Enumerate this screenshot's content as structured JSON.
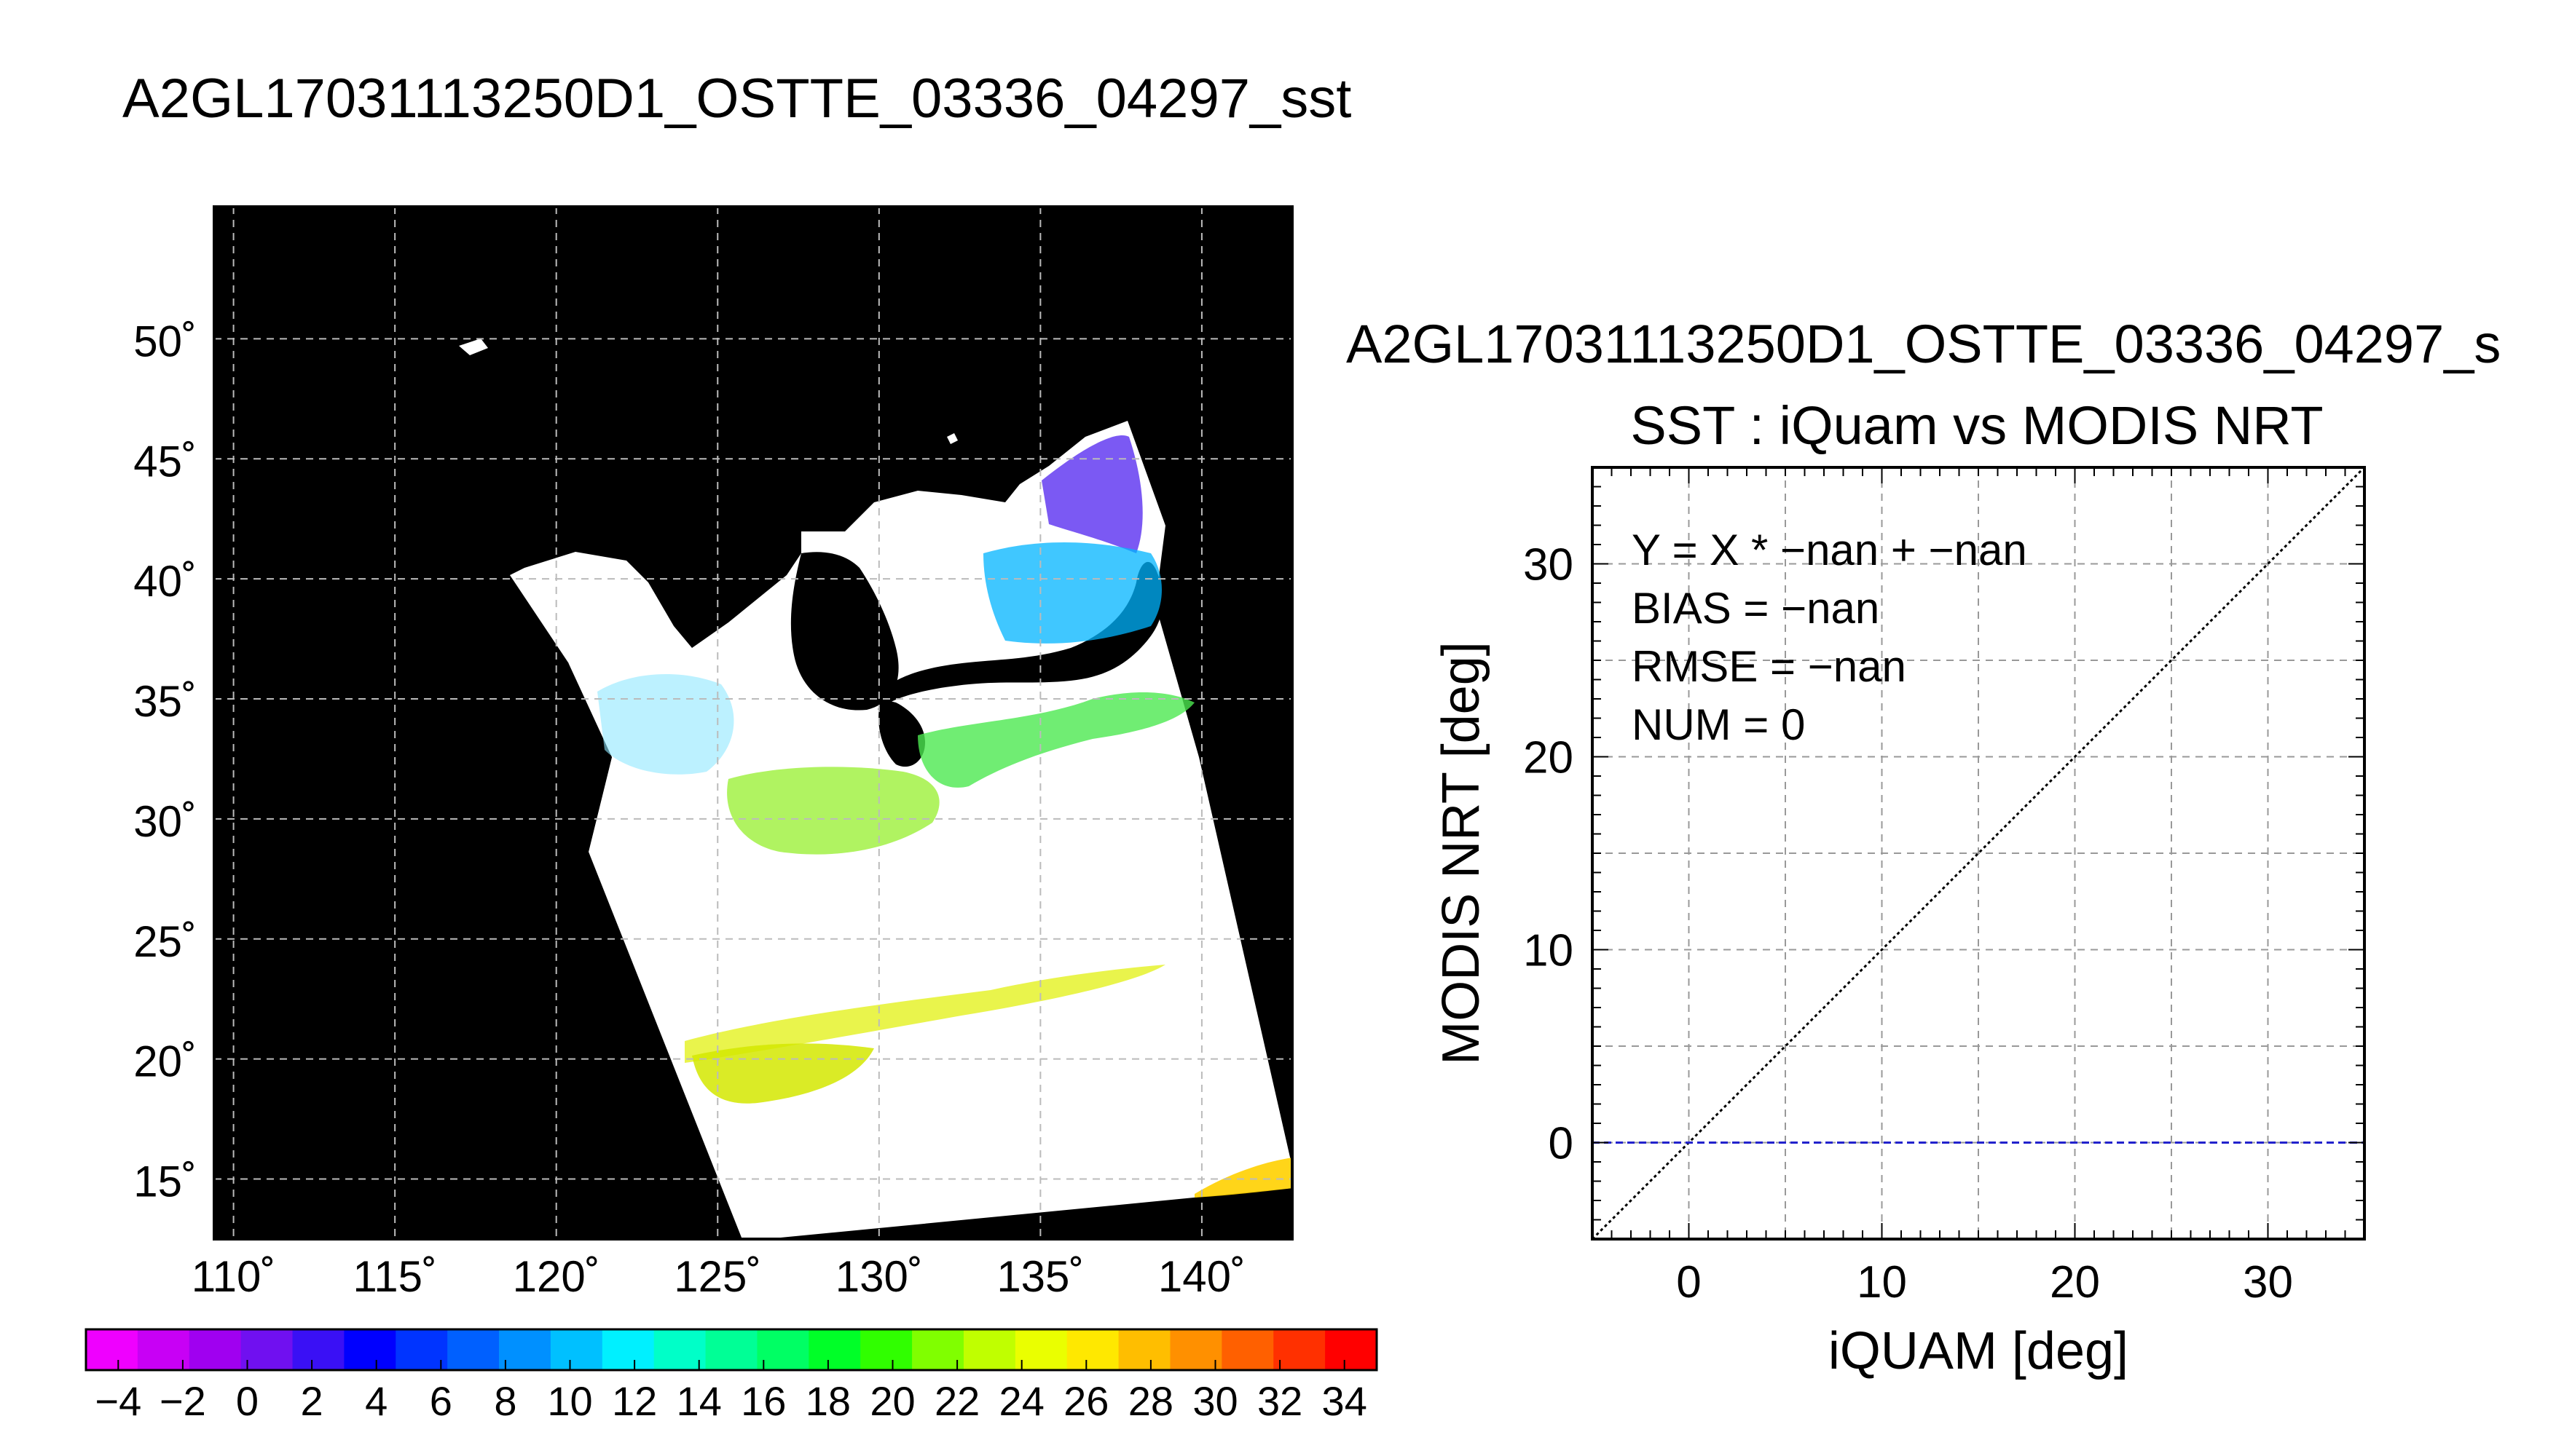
{
  "title": "A2GL17031113250D1_OSTTE_03336_04297_sst",
  "map": {
    "lat_ticks": [
      "15˚",
      "20˚",
      "25˚",
      "30˚",
      "35˚",
      "40˚",
      "45˚",
      "50˚"
    ],
    "lon_ticks": [
      "110˚",
      "115˚",
      "120˚",
      "125˚",
      "130˚",
      "135˚",
      "140˚"
    ],
    "lon_range": [
      109.4,
      142.8
    ],
    "lat_range": [
      12.5,
      55.5
    ],
    "background": "#000000",
    "swath_color": "#ffffff",
    "grid": true
  },
  "colorbar": {
    "labels": [
      "−4",
      "−2",
      "0",
      "2",
      "4",
      "6",
      "8",
      "10",
      "12",
      "14",
      "16",
      "18",
      "20",
      "22",
      "24",
      "26",
      "28",
      "30",
      "32",
      "34"
    ],
    "colors": [
      "#ef00ff",
      "#c800f5",
      "#a000f0",
      "#7010f0",
      "#3a10f5",
      "#0000ff",
      "#0034ff",
      "#0060ff",
      "#0090ff",
      "#00c0ff",
      "#00f0ff",
      "#00ffc8",
      "#00ff96",
      "#00ff64",
      "#00ff28",
      "#30ff00",
      "#80ff00",
      "#c0ff00",
      "#eaff00",
      "#ffe800",
      "#ffbe00",
      "#ff9000",
      "#ff6000",
      "#ff3000",
      "#ff0000"
    ]
  },
  "chart_data": {
    "type": "scatter",
    "title": "A2GL17031113250D1_OSTTE_03336_04297_s",
    "subtitle": "SST : iQuam vs MODIS NRT",
    "xlabel": "iQUAM [deg]",
    "ylabel": "MODIS NRT [deg]",
    "xlim": [
      -5,
      35
    ],
    "ylim": [
      -5,
      35
    ],
    "xticks": [
      0,
      10,
      20,
      30
    ],
    "yticks": [
      0,
      10,
      20,
      30
    ],
    "grid": true,
    "points": [],
    "reference_lines": [
      {
        "name": "1:1",
        "x": [
          -5,
          35
        ],
        "y": [
          -5,
          35
        ],
        "color": "#000000",
        "style": "dotted"
      },
      {
        "name": "zero",
        "x": [
          -5,
          35
        ],
        "y": [
          0,
          0
        ],
        "color": "#2222cc",
        "style": "dashed"
      }
    ],
    "annotations": [
      "Y = X * −nan + −nan",
      "BIAS = −nan",
      "RMSE = −nan",
      "NUM = 0"
    ]
  }
}
